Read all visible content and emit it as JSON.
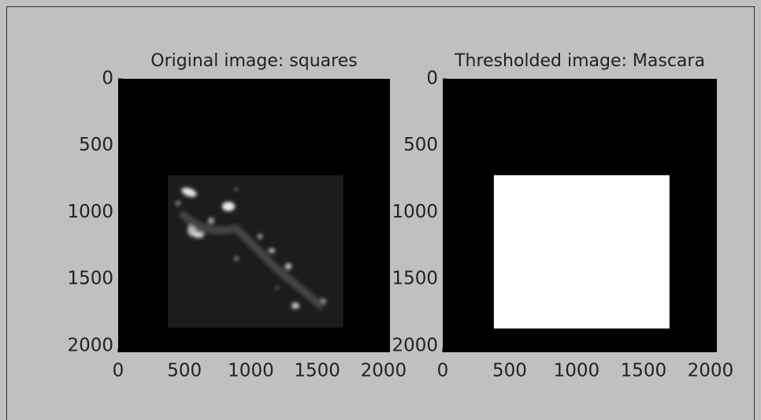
{
  "chart_data": [
    {
      "type": "image",
      "title": "Original image: squares",
      "xlim": [
        0,
        2048
      ],
      "ylim": [
        2048,
        0
      ],
      "xticks": [
        0,
        500,
        1000,
        1500,
        2000
      ],
      "yticks": [
        0,
        500,
        1000,
        1500,
        2000
      ],
      "background": "#000000",
      "region": {
        "x": [
          375,
          1696
        ],
        "y": [
          722,
          1864
        ],
        "color": "#1c1c1c"
      }
    },
    {
      "type": "image",
      "title": "Thresholded image: Mascara",
      "xlim": [
        0,
        2048
      ],
      "ylim": [
        2048,
        0
      ],
      "xticks": [
        0,
        500,
        1000,
        1500,
        2000
      ],
      "yticks": [
        0,
        500,
        1000,
        1500,
        2000
      ],
      "background": "#000000",
      "region": {
        "x": [
          382,
          1694
        ],
        "y": [
          722,
          1870
        ],
        "color": "#ffffff"
      }
    }
  ]
}
